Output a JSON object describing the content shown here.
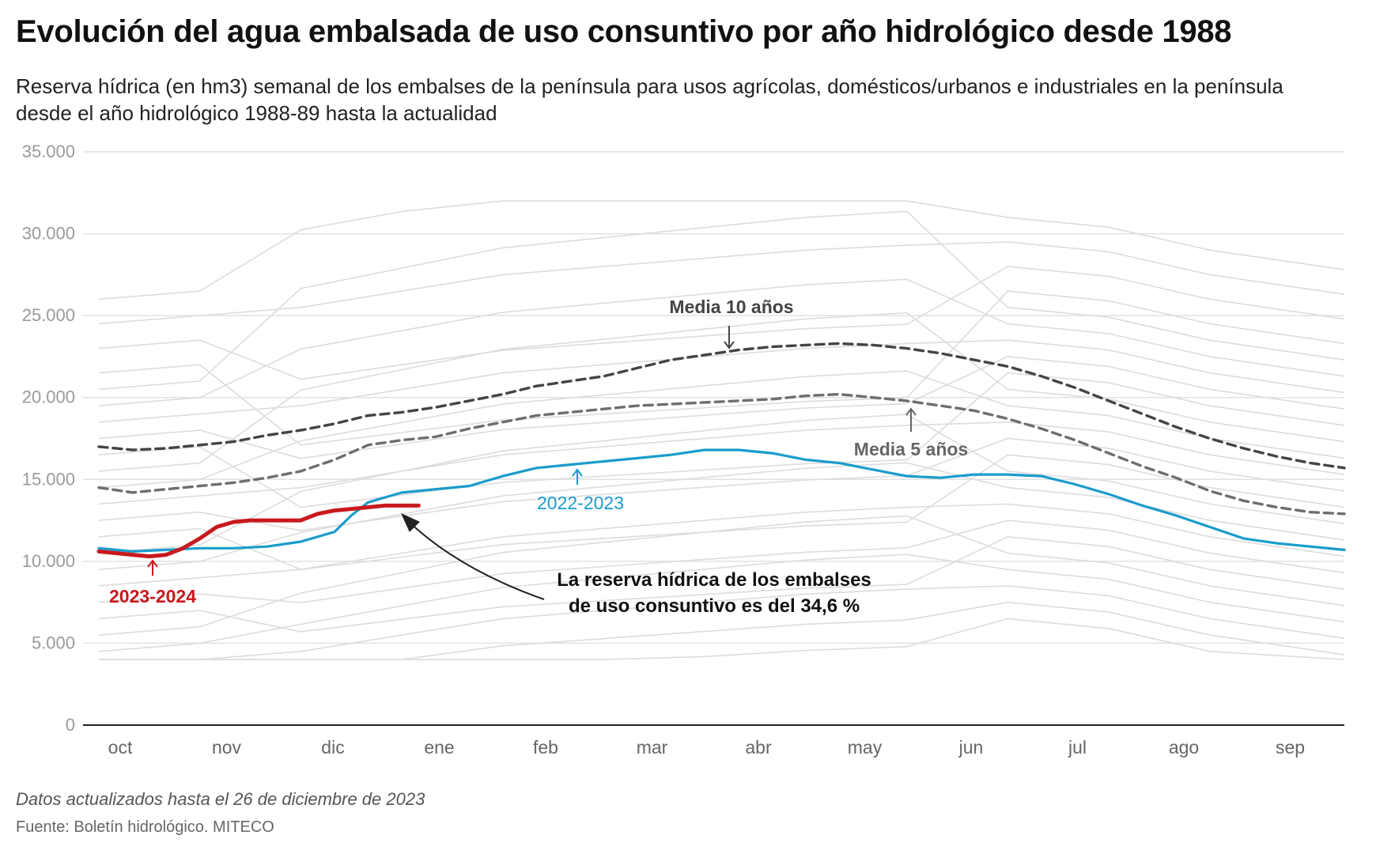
{
  "title": "Evolución del agua embalsada de uso consuntivo por año hidrológico desde 1988",
  "subtitle": "Reserva hídrica (en hm3) semanal de los embalses de la península para usos agrícolas, domésticos/urbanos e industriales en la península desde el año hidrológico 1988-89 hasta la actualidad",
  "footer": {
    "note": "Datos actualizados hasta el 26 de diciembre de 2023",
    "source": "Fuente: Boletín hidrológico. MITECO"
  },
  "colors": {
    "current": "#c8191e",
    "previous": "#1a9ccb",
    "avg10": "#444444",
    "avg5": "#6e6e6e",
    "history": "#dcdcdc",
    "grid": "#e2e2e2"
  },
  "chart_data": {
    "type": "line",
    "x_unit": "week of hydrological year (0 = 1 oct)",
    "months": [
      "oct",
      "nov",
      "dic",
      "ene",
      "feb",
      "mar",
      "abr",
      "may",
      "jun",
      "jul",
      "ago",
      "sep"
    ],
    "ylim": [
      0,
      35000
    ],
    "yticks": [
      0,
      5000,
      10000,
      15000,
      20000,
      25000,
      30000,
      35000
    ],
    "ytick_labels": [
      "0",
      "5.000",
      "10.000",
      "15.000",
      "20.000",
      "25.000",
      "30.000",
      "35.000"
    ],
    "series": [
      {
        "name": "2023-2024",
        "role": "current",
        "points": [
          [
            0,
            10600
          ],
          [
            1,
            10500
          ],
          [
            2,
            10400
          ],
          [
            3,
            10300
          ],
          [
            4,
            10400
          ],
          [
            5,
            10800
          ],
          [
            6,
            11400
          ],
          [
            7,
            12100
          ],
          [
            8,
            12400
          ],
          [
            9,
            12500
          ],
          [
            10,
            12500
          ],
          [
            11,
            12500
          ],
          [
            12,
            12500
          ],
          [
            13,
            12900
          ],
          [
            14,
            13100
          ],
          [
            15,
            13200
          ],
          [
            16,
            13300
          ],
          [
            17,
            13400
          ],
          [
            18,
            13400
          ],
          [
            19,
            13400
          ]
        ]
      },
      {
        "name": "2022-2023",
        "role": "previous",
        "points": [
          [
            0,
            10800
          ],
          [
            2,
            10600
          ],
          [
            4,
            10700
          ],
          [
            6,
            10800
          ],
          [
            8,
            10800
          ],
          [
            10,
            10900
          ],
          [
            12,
            11200
          ],
          [
            14,
            11800
          ],
          [
            15,
            12800
          ],
          [
            16,
            13600
          ],
          [
            18,
            14200
          ],
          [
            20,
            14400
          ],
          [
            22,
            14600
          ],
          [
            24,
            15200
          ],
          [
            26,
            15700
          ],
          [
            28,
            15900
          ],
          [
            30,
            16100
          ],
          [
            32,
            16300
          ],
          [
            34,
            16500
          ],
          [
            36,
            16800
          ],
          [
            38,
            16800
          ],
          [
            40,
            16600
          ],
          [
            42,
            16200
          ],
          [
            44,
            16000
          ],
          [
            46,
            15600
          ],
          [
            48,
            15200
          ],
          [
            50,
            15100
          ],
          [
            52,
            15300
          ],
          [
            54,
            15300
          ],
          [
            56,
            15200
          ],
          [
            58,
            14700
          ],
          [
            60,
            14100
          ],
          [
            62,
            13400
          ],
          [
            64,
            12800
          ],
          [
            66,
            12100
          ],
          [
            68,
            11400
          ],
          [
            70,
            11100
          ],
          [
            72,
            10900
          ],
          [
            74,
            10700
          ]
        ]
      },
      {
        "name": "Media 10 años",
        "role": "avg10",
        "points": [
          [
            0,
            17000
          ],
          [
            2,
            16800
          ],
          [
            4,
            16900
          ],
          [
            6,
            17100
          ],
          [
            8,
            17300
          ],
          [
            10,
            17700
          ],
          [
            12,
            18000
          ],
          [
            14,
            18400
          ],
          [
            16,
            18900
          ],
          [
            18,
            19100
          ],
          [
            20,
            19400
          ],
          [
            22,
            19800
          ],
          [
            24,
            20200
          ],
          [
            26,
            20700
          ],
          [
            28,
            21000
          ],
          [
            30,
            21300
          ],
          [
            32,
            21800
          ],
          [
            34,
            22300
          ],
          [
            36,
            22600
          ],
          [
            38,
            22900
          ],
          [
            40,
            23100
          ],
          [
            42,
            23200
          ],
          [
            44,
            23300
          ],
          [
            46,
            23200
          ],
          [
            48,
            23000
          ],
          [
            50,
            22700
          ],
          [
            52,
            22300
          ],
          [
            54,
            21900
          ],
          [
            56,
            21300
          ],
          [
            58,
            20600
          ],
          [
            60,
            19800
          ],
          [
            62,
            19000
          ],
          [
            64,
            18200
          ],
          [
            66,
            17500
          ],
          [
            68,
            16900
          ],
          [
            70,
            16400
          ],
          [
            72,
            16000
          ],
          [
            74,
            15700
          ]
        ]
      },
      {
        "name": "Media 5 años",
        "role": "avg5",
        "points": [
          [
            0,
            14500
          ],
          [
            2,
            14200
          ],
          [
            4,
            14400
          ],
          [
            6,
            14600
          ],
          [
            8,
            14800
          ],
          [
            10,
            15100
          ],
          [
            12,
            15500
          ],
          [
            14,
            16200
          ],
          [
            16,
            17100
          ],
          [
            18,
            17400
          ],
          [
            20,
            17600
          ],
          [
            22,
            18100
          ],
          [
            24,
            18500
          ],
          [
            26,
            18900
          ],
          [
            28,
            19100
          ],
          [
            30,
            19300
          ],
          [
            32,
            19500
          ],
          [
            34,
            19600
          ],
          [
            36,
            19700
          ],
          [
            38,
            19800
          ],
          [
            40,
            19900
          ],
          [
            42,
            20100
          ],
          [
            44,
            20200
          ],
          [
            46,
            20000
          ],
          [
            48,
            19800
          ],
          [
            50,
            19500
          ],
          [
            52,
            19200
          ],
          [
            54,
            18700
          ],
          [
            56,
            18100
          ],
          [
            58,
            17400
          ],
          [
            60,
            16600
          ],
          [
            62,
            15800
          ],
          [
            64,
            15100
          ],
          [
            66,
            14300
          ],
          [
            68,
            13700
          ],
          [
            70,
            13300
          ],
          [
            72,
            13000
          ],
          [
            74,
            12900
          ]
        ]
      }
    ],
    "history_points": [
      [
        0,
        6000
      ],
      [
        6,
        6500
      ],
      [
        12,
        7000
      ],
      [
        18,
        8000
      ],
      [
        24,
        9000
      ],
      [
        30,
        9500
      ],
      [
        36,
        10000
      ],
      [
        42,
        10500
      ],
      [
        48,
        10800
      ],
      [
        54,
        11000
      ],
      [
        60,
        10400
      ],
      [
        66,
        9000
      ],
      [
        74,
        7800
      ]
    ],
    "annotations": {
      "current": "2023-2024",
      "previous": "2022-2023",
      "avg10": "Media 10 años",
      "avg5": "Media 5 años",
      "callout_line1": "La reserva hídrica de los embalses",
      "callout_line2": "de uso consuntivo es del 34,6 %"
    }
  }
}
